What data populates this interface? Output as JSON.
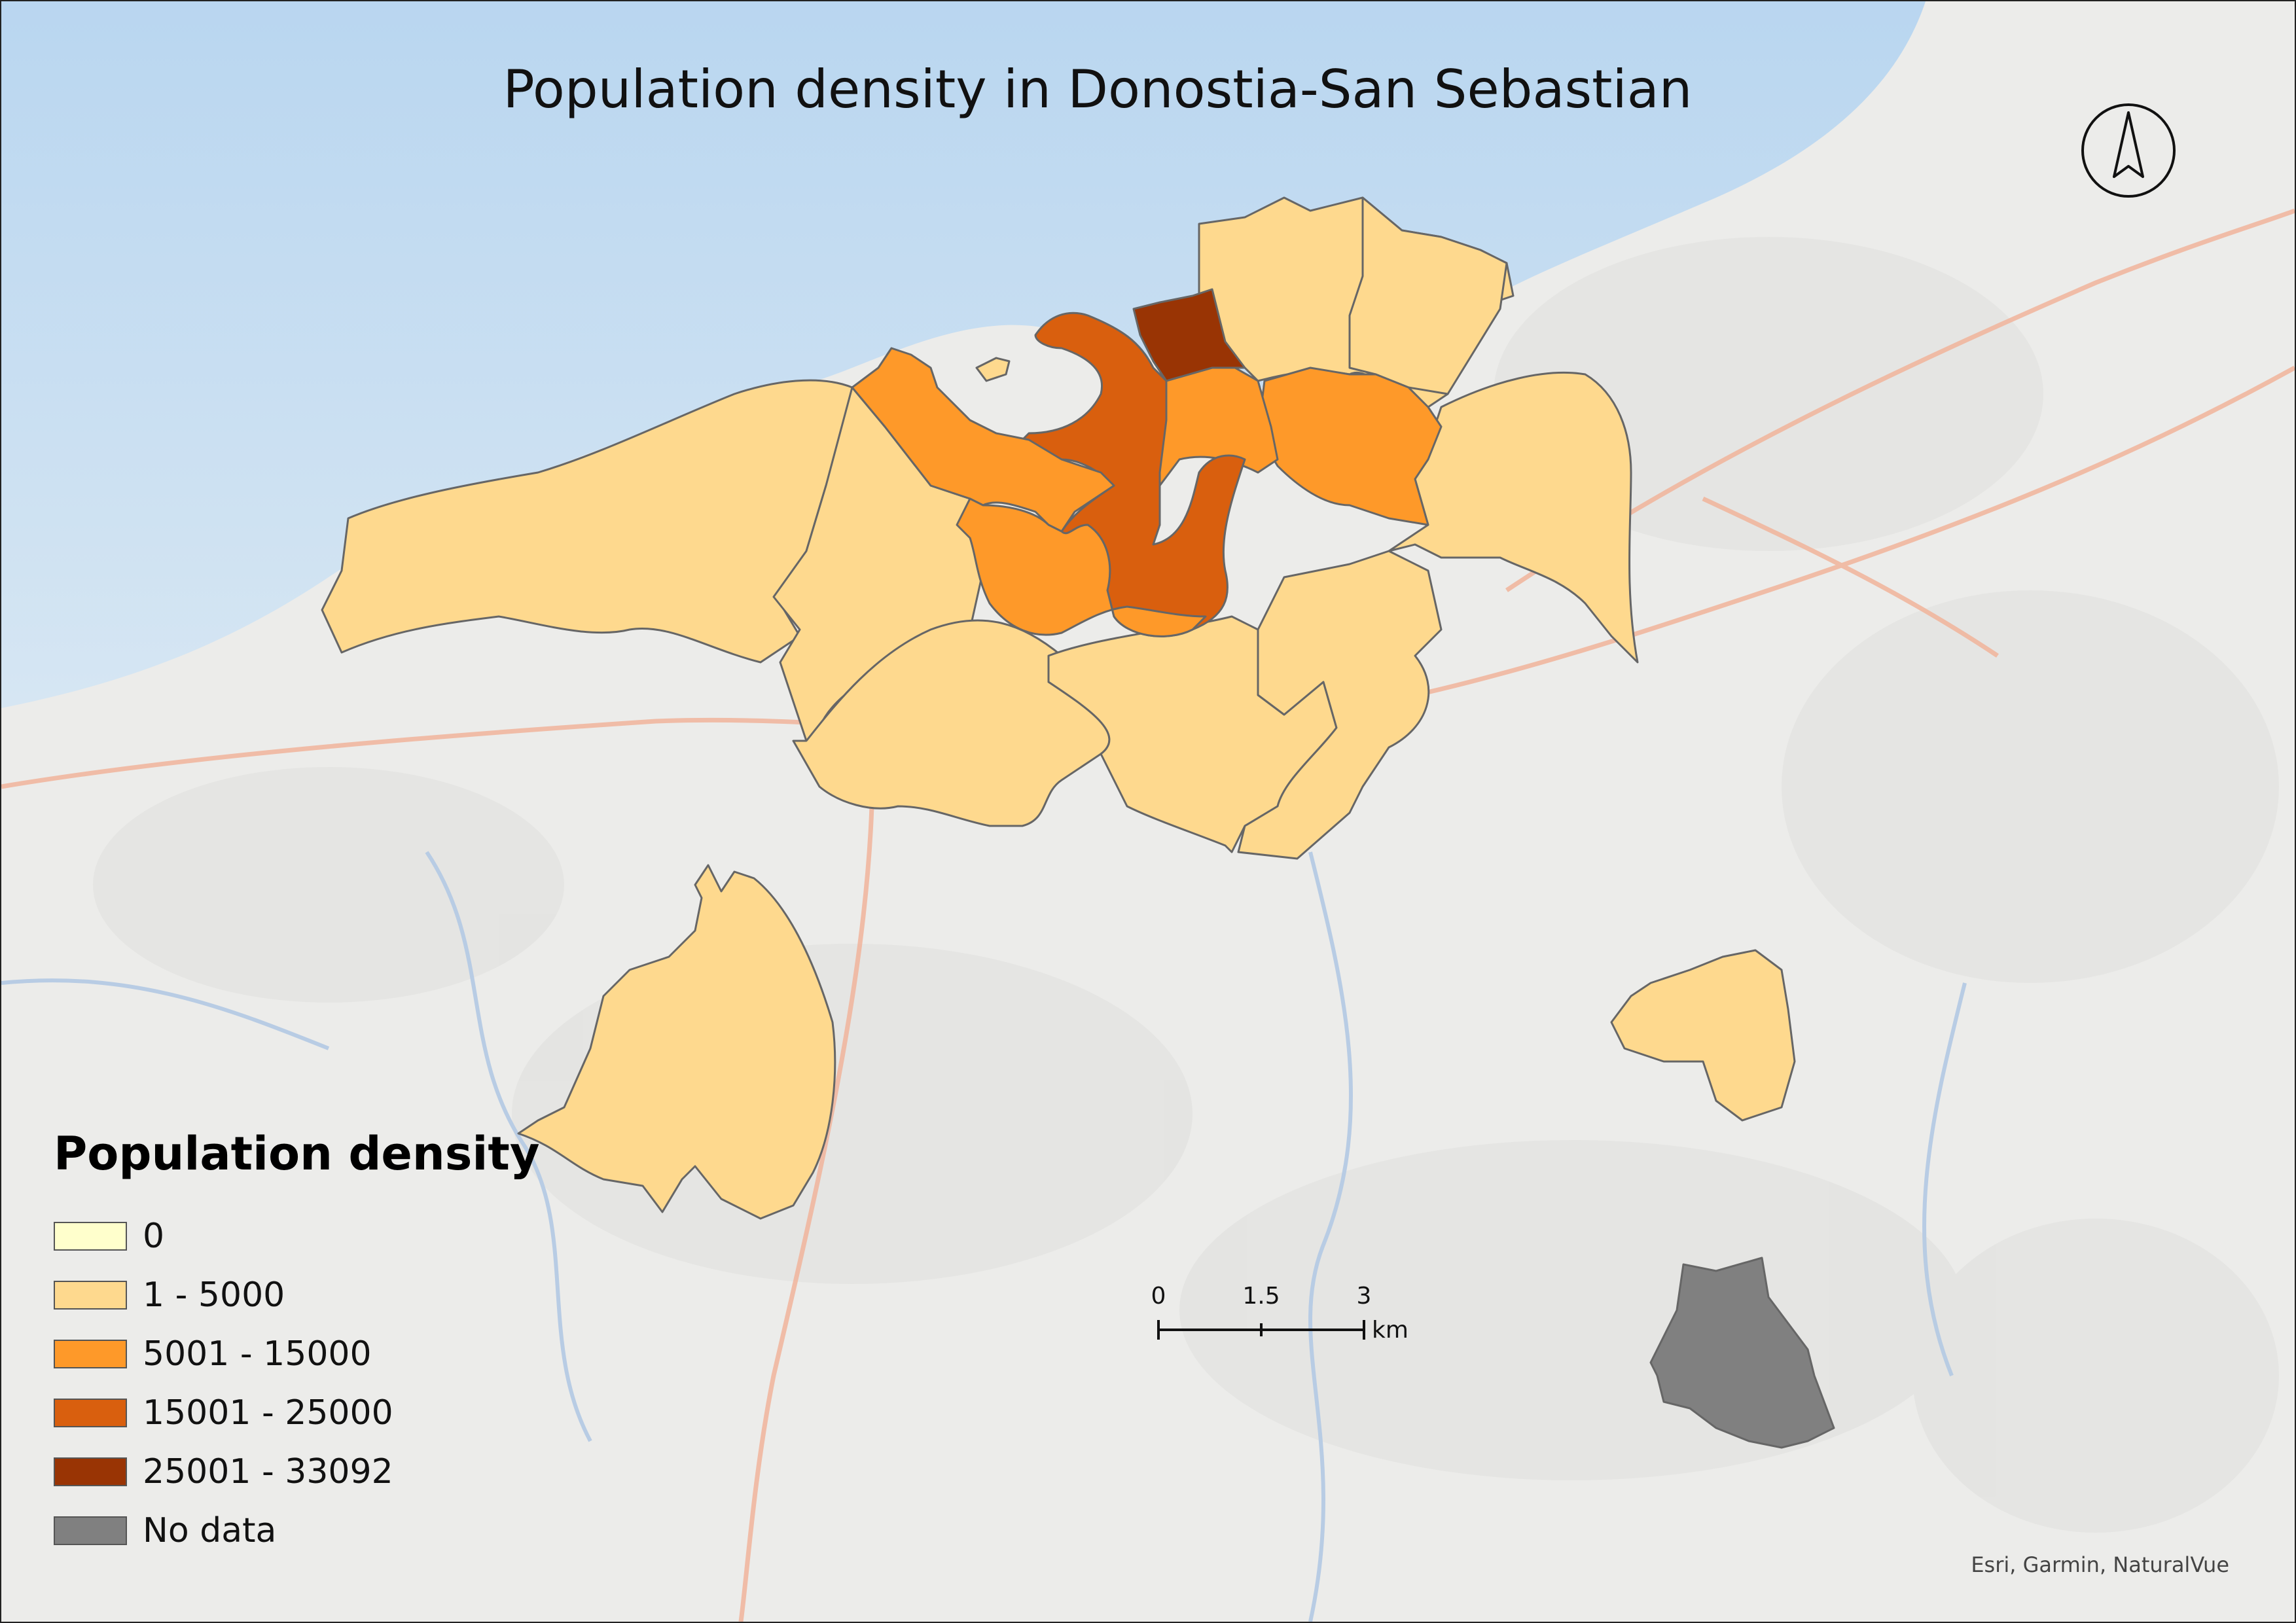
{
  "title": "Population density in Donostia-San Sebastian",
  "legend": {
    "title": "Population density",
    "items": [
      {
        "label": "0",
        "color": "#ffffcc"
      },
      {
        "label": "1 - 5000",
        "color": "#fed98e"
      },
      {
        "label": "5001 - 15000",
        "color": "#fe9929"
      },
      {
        "label": "15001 - 25000",
        "color": "#d95f0e"
      },
      {
        "label": "25001 - 33092",
        "color": "#993404"
      },
      {
        "label": "No data",
        "color": "#808080"
      }
    ]
  },
  "scale_bar": {
    "ticks": [
      "0",
      "1.5",
      "3"
    ],
    "unit": "km"
  },
  "north_arrow": {
    "icon": "north-arrow-icon"
  },
  "attribution": "Esri, Garmin, NaturalVue",
  "colors": {
    "sea": "#c9dff2",
    "land": "#eeeeee",
    "roads": "#f3b8a0",
    "rivers": "#b9cfe6",
    "boundary": "#666666"
  }
}
